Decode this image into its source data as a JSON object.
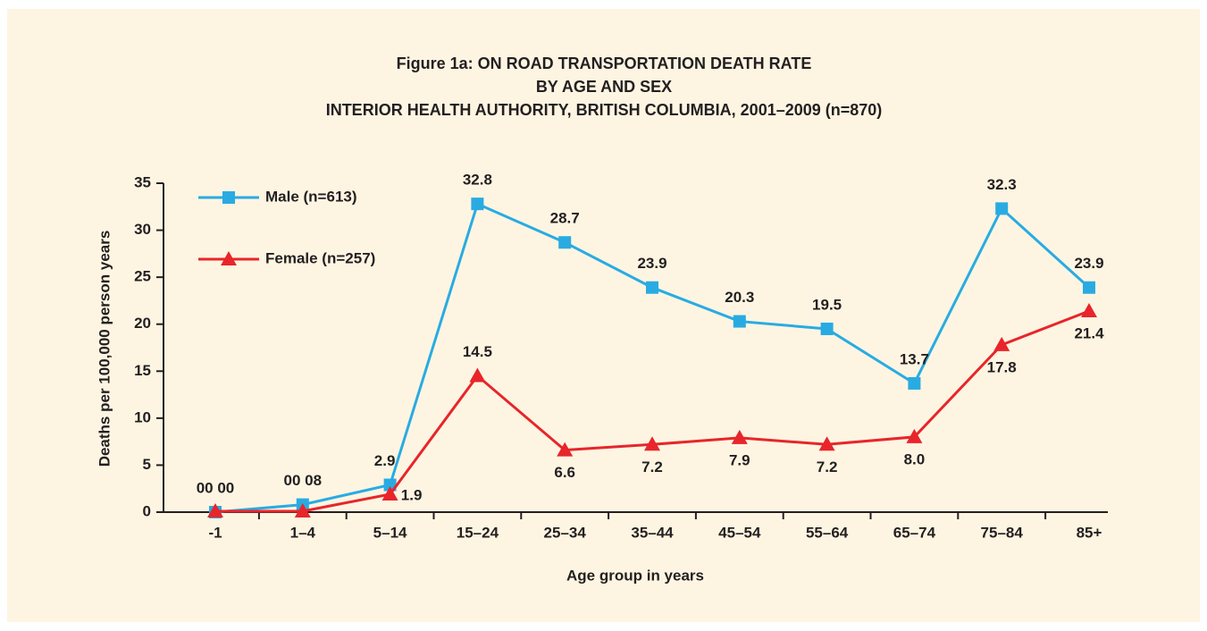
{
  "chart_data": {
    "type": "line",
    "title": "Figure 1a: ON ROAD TRANSPORTATION DEATH RATE",
    "subtitle": [
      "BY AGE AND SEX",
      "INTERIOR HEALTH AUTHORITY, BRITISH COLUMBIA, 2001–2009 (n=870)"
    ],
    "x_label": "Age group in years",
    "y_label": "Deaths per 100,000 person years",
    "categories": [
      "-1",
      "1–4",
      "5–14",
      "15–24",
      "25–34",
      "35–44",
      "45–54",
      "55–64",
      "65–74",
      "75–84",
      "85+"
    ],
    "series": [
      {
        "name": "Male (n=613)",
        "color": "#29abe2",
        "marker": "square",
        "values": [
          0.0,
          0.8,
          2.9,
          32.8,
          28.7,
          23.9,
          20.3,
          19.5,
          13.7,
          32.3,
          23.9
        ],
        "value_labels": [
          "00 00",
          "00 08",
          "2.9",
          "32.8",
          "28.7",
          "23.9",
          "20.3",
          "19.5",
          "13.7",
          "32.3",
          "23.9"
        ]
      },
      {
        "name": "Female (n=257)",
        "color": "#e8252a",
        "marker": "triangle",
        "values": [
          0.1,
          0.1,
          1.9,
          14.5,
          6.6,
          7.2,
          7.9,
          7.2,
          8.0,
          17.8,
          21.4
        ],
        "value_labels": [
          null,
          null,
          "1.9",
          "14.5",
          "6.6",
          "7.2",
          "7.9",
          "7.2",
          "8.0",
          "17.8",
          "21.4"
        ]
      }
    ],
    "ylim": [
      0,
      35
    ],
    "yticks": [
      0,
      5,
      10,
      15,
      20,
      25,
      30,
      35
    ],
    "grid": false,
    "legend": "top-left"
  }
}
